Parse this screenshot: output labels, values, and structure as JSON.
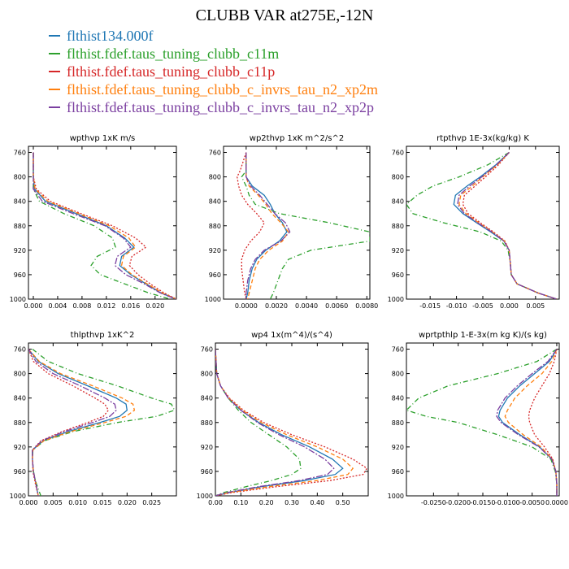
{
  "title": "CLUBB VAR at275E,-12N",
  "legend": [
    {
      "name": "flthist134.000f",
      "color": "#1f77b4",
      "dash": "solid"
    },
    {
      "name": "flthist.fdef.taus_tuning_clubb_c11m",
      "color": "#2ca02c",
      "dash": "dashdot"
    },
    {
      "name": "flthist.fdef.taus_tuning_clubb_c11p",
      "color": "#d62728",
      "dash": "dotted"
    },
    {
      "name": "flthist.fdef.taus_tuning_clubb_c_invrs_tau_n2_xp2m",
      "color": "#ff7f0e",
      "dash": "dashed"
    },
    {
      "name": "flthist.fdef.taus_tuning_clubb_c_invrs_tau_n2_xp2p",
      "color": "#7b3fa0",
      "dash": "dashdash"
    }
  ],
  "chart_data": [
    {
      "type": "line",
      "title": "wpthvp  1xK m/s",
      "xlim": [
        -0.0008,
        0.0235
      ],
      "ylim": [
        1000,
        750
      ],
      "yticks": [
        760,
        800,
        840,
        880,
        920,
        960,
        1000
      ],
      "xticks": [
        0.0,
        0.004,
        0.008,
        0.012,
        0.016,
        0.02
      ],
      "xticklabels": [
        "0.000",
        "0.004",
        "0.008",
        "0.012",
        "0.016",
        "0.020"
      ],
      "y": [
        760,
        800,
        820,
        840,
        860,
        880,
        900,
        915,
        930,
        945,
        960,
        975,
        990,
        1000
      ],
      "series": [
        {
          "x": [
            0.0,
            0.0,
            0.0002,
            0.002,
            0.007,
            0.012,
            0.015,
            0.0165,
            0.0145,
            0.0142,
            0.016,
            0.0185,
            0.021,
            0.0235
          ]
        },
        {
          "x": [
            0.0,
            0.0,
            0.0,
            0.001,
            0.005,
            0.01,
            0.013,
            0.0135,
            0.0105,
            0.0095,
            0.011,
            0.015,
            0.019,
            0.0225
          ]
        },
        {
          "x": [
            0.0,
            0.0,
            0.0005,
            0.0028,
            0.0078,
            0.013,
            0.0168,
            0.0185,
            0.0162,
            0.0158,
            0.0172,
            0.0192,
            0.0215,
            0.0235
          ]
        },
        {
          "x": [
            0.0,
            0.0,
            0.0003,
            0.0024,
            0.0074,
            0.0125,
            0.0157,
            0.0168,
            0.0148,
            0.0145,
            0.0162,
            0.0187,
            0.0212,
            0.0235
          ]
        },
        {
          "x": [
            0.0,
            0.0,
            0.0,
            0.0015,
            0.0065,
            0.0118,
            0.0148,
            0.016,
            0.0138,
            0.0134,
            0.0152,
            0.0182,
            0.0209,
            0.0234
          ]
        }
      ]
    },
    {
      "type": "line",
      "title": "wp2thvp  1xK m^2/s^2",
      "xlim": [
        -0.0015,
        0.0082
      ],
      "ylim": [
        1000,
        750
      ],
      "yticks": [
        760,
        800,
        840,
        880,
        920,
        960,
        1000
      ],
      "xticks": [
        0.0,
        0.002,
        0.004,
        0.006,
        0.008
      ],
      "xticklabels": [
        "0.0000",
        "0.0020",
        "0.0040",
        "0.0060",
        "0.0080"
      ],
      "y": [
        760,
        790,
        800,
        815,
        830,
        845,
        860,
        875,
        890,
        905,
        920,
        935,
        950,
        970,
        990,
        1000
      ],
      "series": [
        {
          "x": [
            0.0,
            0.0,
            0.0,
            0.0004,
            0.0012,
            0.0016,
            0.0019,
            0.0024,
            0.0027,
            0.0022,
            0.0013,
            0.0007,
            0.0004,
            0.0002,
            0.0001,
            0.0
          ]
        },
        {
          "x": [
            0.0,
            0.0,
            -0.0003,
            0.0,
            0.0002,
            0.0006,
            0.0022,
            0.0055,
            0.0082,
            0.0082,
            0.0043,
            0.0028,
            0.0024,
            0.0021,
            0.0018,
            0.0016
          ]
        },
        {
          "x": [
            0.0,
            -0.0004,
            -0.0006,
            -0.0005,
            -0.0003,
            0.0001,
            0.0007,
            0.0012,
            0.0009,
            0.0003,
            -0.0001,
            -0.0003,
            -0.0003,
            -0.0002,
            -0.0001,
            0.0
          ]
        },
        {
          "x": [
            0.0,
            0.0,
            0.0,
            0.0002,
            0.0008,
            0.0013,
            0.0017,
            0.0023,
            0.0028,
            0.0024,
            0.0015,
            0.0009,
            0.0006,
            0.0004,
            0.0002,
            0.0001
          ]
        },
        {
          "x": [
            0.0,
            0.0,
            0.0,
            0.0003,
            0.0009,
            0.0014,
            0.0019,
            0.0026,
            0.0029,
            0.0023,
            0.0012,
            0.0006,
            0.0003,
            0.0001,
            0.0,
            0.0
          ]
        }
      ]
    },
    {
      "type": "line",
      "title": "rtpthvp  1E-3x(kg/kg) K",
      "xlim": [
        -0.0195,
        0.0095
      ],
      "ylim": [
        1000,
        750
      ],
      "yticks": [
        760,
        800,
        840,
        880,
        920,
        960,
        1000
      ],
      "xticks": [
        -0.015,
        -0.01,
        -0.005,
        0.0,
        0.005
      ],
      "xticklabels": [
        "-0.015",
        "-0.010",
        "-0.005",
        "0.000",
        "0.005"
      ],
      "y": [
        760,
        780,
        800,
        815,
        830,
        845,
        860,
        875,
        890,
        905,
        920,
        940,
        960,
        975,
        990,
        1000
      ],
      "series": [
        {
          "x": [
            0.0,
            -0.0025,
            -0.0055,
            -0.008,
            -0.0102,
            -0.0105,
            -0.0088,
            -0.0062,
            -0.0035,
            -0.001,
            0.0,
            0.0002,
            0.0004,
            0.0015,
            0.0055,
            0.009
          ]
        },
        {
          "x": [
            0.0,
            -0.004,
            -0.0095,
            -0.0145,
            -0.0175,
            -0.0195,
            -0.0183,
            -0.0125,
            -0.0055,
            -0.0015,
            -0.0002,
            0.0002,
            0.0004,
            0.0015,
            0.0055,
            0.009
          ]
        },
        {
          "x": [
            0.0,
            -0.002,
            -0.0045,
            -0.0065,
            -0.0085,
            -0.0088,
            -0.0078,
            -0.0055,
            -0.003,
            -0.0008,
            0.0,
            0.0002,
            0.0004,
            0.0015,
            0.0055,
            0.009
          ]
        },
        {
          "x": [
            0.0,
            -0.0022,
            -0.005,
            -0.007,
            -0.0092,
            -0.0095,
            -0.0082,
            -0.0058,
            -0.0032,
            -0.0009,
            0.0,
            0.0002,
            0.0004,
            0.0015,
            0.0055,
            0.009
          ]
        },
        {
          "x": [
            0.0,
            -0.0024,
            -0.0052,
            -0.0075,
            -0.0095,
            -0.0098,
            -0.0085,
            -0.006,
            -0.0033,
            -0.001,
            0.0,
            0.0002,
            0.0004,
            0.0015,
            0.0055,
            0.009
          ]
        }
      ]
    },
    {
      "type": "line",
      "title": "thlpthvp  1xK^2",
      "xlim": [
        0.0,
        0.03
      ],
      "ylim": [
        1000,
        750
      ],
      "yticks": [
        760,
        800,
        840,
        880,
        920,
        960,
        1000
      ],
      "xticks": [
        0.0,
        0.005,
        0.01,
        0.015,
        0.02,
        0.025
      ],
      "xticklabels": [
        "0.000",
        "0.005",
        "0.010",
        "0.015",
        "0.020",
        "0.025"
      ],
      "y": [
        760,
        780,
        800,
        820,
        840,
        850,
        860,
        870,
        880,
        895,
        910,
        925,
        940,
        960,
        980,
        1000
      ],
      "series": [
        {
          "x": [
            0.0,
            0.002,
            0.006,
            0.012,
            0.0178,
            0.0198,
            0.02,
            0.0185,
            0.0145,
            0.008,
            0.003,
            0.0008,
            0.0008,
            0.001,
            0.0015,
            0.002
          ]
        },
        {
          "x": [
            0.0008,
            0.004,
            0.01,
            0.018,
            0.025,
            0.029,
            0.0296,
            0.026,
            0.018,
            0.009,
            0.0032,
            0.0009,
            0.0008,
            0.001,
            0.0016,
            0.0025
          ]
        },
        {
          "x": [
            0.0,
            0.001,
            0.004,
            0.009,
            0.0135,
            0.0155,
            0.0162,
            0.0152,
            0.012,
            0.0068,
            0.0025,
            0.0008,
            0.0008,
            0.0009,
            0.0014,
            0.002
          ]
        },
        {
          "x": [
            0.0,
            0.0022,
            0.0065,
            0.013,
            0.019,
            0.0212,
            0.0215,
            0.0198,
            0.0155,
            0.0085,
            0.0031,
            0.0009,
            0.0008,
            0.001,
            0.0015,
            0.002
          ]
        },
        {
          "x": [
            0.0,
            0.0015,
            0.005,
            0.0105,
            0.0155,
            0.0175,
            0.0178,
            0.0165,
            0.013,
            0.0072,
            0.0027,
            0.0008,
            0.0008,
            0.001,
            0.0015,
            0.002
          ]
        }
      ]
    },
    {
      "type": "line",
      "title": "wp4  1x(m^4)/(s^4)",
      "xlim": [
        0.0,
        0.6
      ],
      "ylim": [
        1000,
        750
      ],
      "yticks": [
        760,
        800,
        840,
        880,
        920,
        960,
        1000
      ],
      "xticks": [
        0.0,
        0.1,
        0.2,
        0.3,
        0.4,
        0.5
      ],
      "xticklabels": [
        "0.00",
        "0.10",
        "0.20",
        "0.30",
        "0.40",
        "0.50"
      ],
      "y": [
        760,
        800,
        820,
        840,
        860,
        880,
        900,
        920,
        940,
        955,
        965,
        975,
        985,
        995,
        1000
      ],
      "series": [
        {
          "x": [
            0.0,
            0.005,
            0.02,
            0.05,
            0.1,
            0.17,
            0.26,
            0.37,
            0.46,
            0.5,
            0.47,
            0.35,
            0.18,
            0.05,
            0.0
          ]
        },
        {
          "x": [
            0.0,
            0.005,
            0.02,
            0.05,
            0.09,
            0.14,
            0.21,
            0.28,
            0.33,
            0.335,
            0.3,
            0.22,
            0.12,
            0.03,
            0.0
          ]
        },
        {
          "x": [
            0.0,
            0.005,
            0.02,
            0.055,
            0.11,
            0.19,
            0.3,
            0.43,
            0.54,
            0.595,
            0.58,
            0.45,
            0.24,
            0.06,
            0.0
          ]
        },
        {
          "x": [
            0.0,
            0.005,
            0.02,
            0.052,
            0.105,
            0.18,
            0.28,
            0.4,
            0.5,
            0.54,
            0.52,
            0.4,
            0.21,
            0.05,
            0.0
          ]
        },
        {
          "x": [
            0.0,
            0.005,
            0.02,
            0.05,
            0.1,
            0.165,
            0.25,
            0.35,
            0.43,
            0.465,
            0.44,
            0.33,
            0.17,
            0.04,
            0.0
          ]
        }
      ]
    },
    {
      "type": "line",
      "title": "wprtpthlp  1-E-3x(m kg K)/(s kg)",
      "xlim": [
        -0.0305,
        0.0005
      ],
      "ylim": [
        1000,
        750
      ],
      "yticks": [
        760,
        800,
        840,
        880,
        920,
        960,
        1000
      ],
      "xticks": [
        -0.025,
        -0.02,
        -0.015,
        -0.01,
        -0.005,
        0.0
      ],
      "xticklabels": [
        "-0.0250",
        "-0.0200",
        "-0.0150",
        "-0.0100",
        "-0.0050",
        "0.0000"
      ],
      "y": [
        760,
        780,
        800,
        820,
        840,
        860,
        870,
        880,
        900,
        920,
        940,
        960,
        980,
        1000
      ],
      "series": [
        {
          "x": [
            0.0,
            -0.0015,
            -0.0045,
            -0.0075,
            -0.01,
            -0.0115,
            -0.0118,
            -0.011,
            -0.0075,
            -0.0035,
            -0.001,
            -0.0002,
            0.0,
            0.0
          ]
        },
        {
          "x": [
            0.0,
            -0.004,
            -0.012,
            -0.022,
            -0.028,
            -0.0305,
            -0.0265,
            -0.02,
            -0.012,
            -0.005,
            -0.0012,
            -0.0003,
            0.0,
            0.0
          ]
        },
        {
          "x": [
            0.0,
            -0.0005,
            -0.0015,
            -0.003,
            -0.0045,
            -0.0055,
            -0.0057,
            -0.0055,
            -0.0045,
            -0.0025,
            -0.0008,
            -0.0002,
            0.0,
            0.0
          ]
        },
        {
          "x": [
            0.0,
            -0.001,
            -0.003,
            -0.006,
            -0.0085,
            -0.01,
            -0.0105,
            -0.0098,
            -0.0068,
            -0.0032,
            -0.0009,
            -0.0002,
            0.0,
            0.0
          ]
        },
        {
          "x": [
            0.0,
            -0.0018,
            -0.005,
            -0.008,
            -0.0105,
            -0.012,
            -0.0122,
            -0.0113,
            -0.0078,
            -0.0036,
            -0.001,
            -0.0002,
            0.0,
            0.0
          ]
        }
      ]
    }
  ]
}
